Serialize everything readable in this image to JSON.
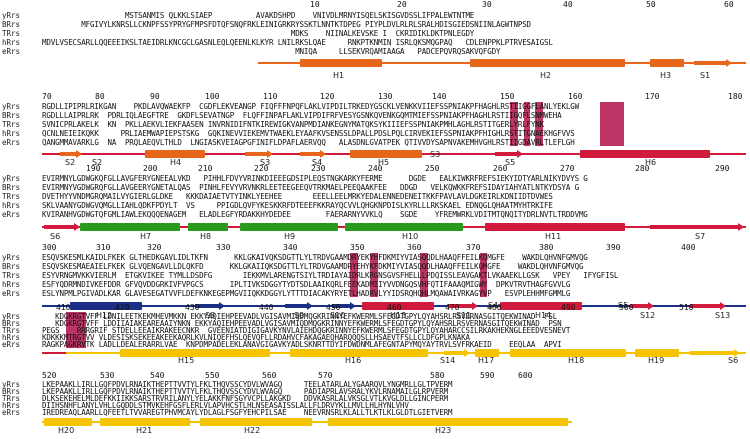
{
  "species": [
    "yRrs",
    "BRrs",
    "TRrs",
    "hRrs",
    "eRrs"
  ],
  "colors": {
    "block1": "#e8651c",
    "block2_red": "#d11a3c",
    "block2_green": "#2a9a1f",
    "block3_navy": "#1b2f86",
    "block3_red": "#d11a3c",
    "block4": "#f5c400",
    "highlight": "#b0104a"
  },
  "blocks": [
    {
      "ruler": [
        "10",
        "20",
        "30",
        "40",
        "50",
        "60"
      ],
      "seqs": [
        "                   MSTSANMIS QLKKLSIAEP          AVAKDSHPD    VNIVDLMRNYISQELSKISGVDSSLIFPALEWTNTME",
        "         MFGIVYLKNRSLLCKNPFSSYPRYGFMPSFDTQFSNQFRKLEINIGRKRYSSKTLNNTKTDPEG PIYPLDVLRLRLSRALHDISGIEDSNIINLAGWTNPSD",
        "                                                         MDKS    NIINALKEVSKE I  CKRIDIKLDKTPNLEGDY",
        "MDVLVSECSARLLQQEEEIKSLTAEIDRLKNCGCLGASNLEQLQEENLKLKYR LNILRKSLQAE     RNKPTKNMIN ISRLQKSMQGPAQ   CDLENPPKLPTRVESAIGSL",
        "                                                          MNIQA     LLSEKVRQAMIAAGA   PADCEPQVRQSAKVQFGDY"
      ],
      "labels": [
        "H1",
        "H2",
        "H3",
        "S1"
      ]
    },
    {
      "ruler": [
        "70",
        "80",
        "90",
        "100",
        "110",
        "120",
        "130",
        "140",
        "150",
        "160",
        "170",
        "180"
      ],
      "seqs": [
        "RGDLLIPIPRLRIKGAN    PKDLAVQWAEKFP  CGDFLEKVEANGP FIQFFFNPQFLAKLVIPDILTRKEDYGSCKLVENKKVIIEFSSPNIAKPFHAGHLRSTIIGGFLANLYEKLGW",
        "RGDLLLAIPRLRK  PDRLIQLAEGFTRE  GKDFLSEVATNGP  FLQFFINPAFLAKLVIPDIFRFVESYGSNKQVENKGQMTMIEFSSPNIAKPFHAGHLRSTIIGQFLSNMWEHA",
        "SVNICPRLAKELK  KN  PKLLAEKVLIEKFAASEN INVRNIDIFNTKIREWIGKVANPMDIANKEGNYMATQKSYKIIIEFSSPNIAKPMHLAGHLRSTITGERLYRLFYNK",
        "QCNLNEIEIKQKK     PRLIAEMWAPIEPSTSKG  GQKINEVVIEKEMVTWAEKLEYAAFKVSENSSLDPALLPDSLPQLCIRVEKIEFSSPNIAKPFHIGHLRSTITGNAEKHGFVVS",
        "QANGMMAVARKLG  NA  PRQLAEQVLTHLD  LNGIASKVEIAGPGFINIFLDPAFLAERVQQ   ALASDNLGVATPEK QTIVVDYSAPNVAKEMHVGHLRSTIIGDAVRLTLEFLGH"
      ],
      "labels": [
        "S2",
        "S2",
        "H4",
        "S3",
        "S4",
        "H5",
        "S3",
        "S5",
        "H6"
      ]
    },
    {
      "ruler": [
        "190",
        "200",
        "210",
        "220",
        "230",
        "240",
        "250",
        "260",
        "270",
        "280",
        "290"
      ],
      "seqs": [
        "EVIRMNYLGDWGKQFGLLAVGFERYGNEEALVKD   PIHHLFDVYVRINKDIEEEGDSIPLEQSTNGKARKYFERME      DGDE   EALKIWKRFREFSIEKYIDTYARLNIKYDVYS G",
        "EVIRMNYVGDWGRQFGLLAVGEERYGNETALQAS  PINHLFEVYVRVNKRLEETEEGEEQVTRKMAELPEEQAAKFEE   DDGD   VELKQWKKFREFSIDAYIAHYATLNTKYDSYA G",
        "DVETHYYVNDMGRQMAILVYGIERLGLDKE   KKKDAIAETVTYINKLYEEHEE       EEELLEELMRKYEDALENNEDENEITKKFPAVLAVLDGKEIRLKDNIIDTDVWES",
        "SKLVAANYGDWGVQMGLLIAHLQDKFPDYLT  VS     PPIGDLQVFYKESKKRFDTEEEFKKRAYQCVVLQHGKNPDISLKYRLLLRKSKAEL EDNQGLQHAATMYHTRKIFE",
        "KVIRANHVGDWGTQFGMLIAWLEKQQQENAGEM   ELADLEGFYRDAKKHYDEDEE        FAERARNYVVKLQ    SGDE    YFREMWRKLVDITMTQNQITYDRLNVTLTRDDVMG"
      ],
      "labels": [
        "S6",
        "H7",
        "H8",
        "H9",
        "H10",
        "H11",
        "S7"
      ]
    },
    {
      "ruler": [
        "300",
        "310",
        "320",
        "330",
        "340",
        "350",
        "360",
        "370",
        "380",
        "390",
        "400"
      ],
      "seqs": [
        "ESQVSKESMLKAIDLFKEK GLTHEDKGAVLIDLTKFN      KKLGKAIVQKSDGTTLYLTRDVGAAMDRYEKYHFDKMIYVIASQQDLHAAQFFEILKQMGFE    WAKDLQHVNFGMVQG",
        "ESQVSKESMAEAIELFKEK GLVQENGAVLLDLQKFD      KKLGKAIIQKSDGTTLYLTRDVGAAMDRYEHYKFDKMIYVIASQQDLHAAQFFEILKQMGFE    WAKDLQHVNFGMVQG",
        "ESYVRNGMVKKVIERLM  ETGKVIKEE TYMLLDSDFG       IEKKMVLARENGTSIYLTRDIAYAIDRLKRGNSGVSFHELLLPDQISSLEAVGAKTLVKAAEKLLGSK   VPEY   IFYGFISL",
        "ESFYQDRMNDIVKEFDDR GFVQVDDGRKIVFVPGCS      IPLTIVKSDGGYTYDTSDLAAIKQRLFEEKADMIIYVVDNGQSVHFQTIFAAAQMIGWY  DPKVTRVTHAGFGVVLG",
        "ESLYNPMLPGIVADLKAR GLAVESEGATVVFLDEFKNKEGEPMGVIIQKKDGGYLYTTTDIACAKYRYETLHADRVLYYIDSRQHQHLMQAWAIVRKAGYVP   ESVPLEHHMFGMMLG"
      ],
      "labels": [
        "H12",
        "S8",
        "S9",
        "S10",
        "H13",
        "S11",
        "S4",
        "H14",
        "S5",
        "S12",
        "S13"
      ]
    },
    {
      "ruler": [
        "410",
        "420",
        "430",
        "440",
        "450",
        "460",
        "470",
        "480",
        "490",
        "500",
        "510"
      ],
      "seqs": [
        "   KDGKRGTVFF LDNILEETKEKMHEVMKKN EKKYAQIEHPEEVADLVGISAVMIQDMQGKRINNYEFKWERMLSFEGDTGPYLQYAHSRLRSVERNASGITQEKWINAD  FSL",
        "   KDGKRGTVFF LDDIIAIAKEAREAAIYNKN EKKYAQIEHPEEVADLVGISAVMIQDMQGKRINNYEFKWERMLSFEGDTGPYLQYAHSRLRSVERNASGITQEKWINAD  PSN",
        "PEGS    RRRGRIF STDELLEEAIKRAKEECNKR  GVEENIATDIGIGAVKYNVLAIEHDQGKRINNYEFKWERMLSFEGDTGPYLQYAHARCCSILRKAKHEKNGLEEEDVESNEVT",
        "KDKKKMTRGTVV VLDESISKSEKEEAKEEKAQRLKVLNIQEFHSLQEVQFLLRDAHVCFAKAGAEQHARQQQSLLHSAEVTFSLLCLDFGPLKNAKA",
        "RAGKPAGKRVTK LADLLDEALERARRLVAE  KNPDMPADELEKLANAVGIGAVKYADLSKNRTTDYIFDWDNMLAFEGNTAPYMQYAYTRVLSVFRKAEID    EEQLAA  APVI"
      ],
      "labels": [
        "H15",
        "H16",
        "S14",
        "H17",
        "H18",
        "H19",
        "S6"
      ]
    },
    {
      "ruler": [
        "520",
        "530",
        "540",
        "550",
        "560",
        "570",
        "580",
        "590",
        "600"
      ],
      "seqs": [
        "LKEPAAKLLIRLLGQFPDVLRNAIKTHEPTTVVTYLFKLTHQVSSCYDVLWVAGQ     TEELATARLALYGAARQVLYNGMRLLGLTPVERM",
        "LKEPAAKLLIRLLGQFPDVLRNAIKTHEPTTVVTYLFKLTHQVSSCYDVLWVAGQ     PADIAPRLAVSRALYKVLRNAMAILGLRPVERM",
        "DLKSEKEHELMLDEFKKIIKKSARSTRVRILANYLYELAKKFNFSGYVCPLLAKGKD   DDVKASRLALVKSGLVTLKVGLDLLGINCPERM",
        "DIIHSNHFLANYLVHLLGQDDLSTMVKEHFGSFLERLVLAPVHCSTLHLNSEASAISSLALLFLDRVYKLLMVLLHLHYNLVHV",
        "IREDREAQLAARLLQFEETLTVVAREGTPHVMCAYLYDLAGLFSGFYEHCPILSAE    NEEVRNSRLKLALLTLKTLKLGLDTLGIETVERM"
      ],
      "labels": [
        "H20",
        "H21",
        "H22",
        "H23"
      ]
    }
  ]
}
